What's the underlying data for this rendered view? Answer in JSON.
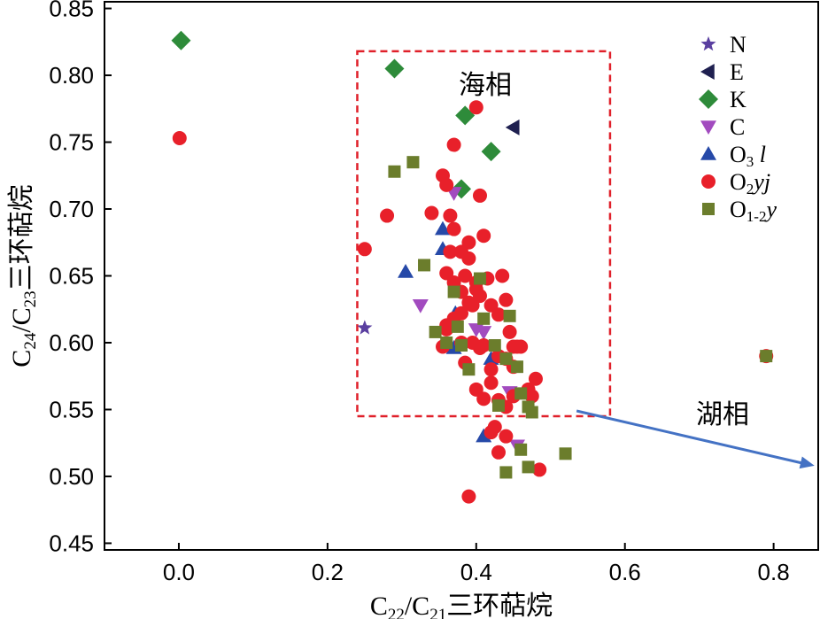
{
  "chart_data": {
    "type": "scatter",
    "xlim": [
      -0.1,
      0.86
    ],
    "ylim": [
      0.445,
      0.855
    ],
    "x_ticks": [
      "0.0",
      "0.2",
      "0.4",
      "0.6",
      "0.8"
    ],
    "y_ticks": [
      "0.45",
      "0.50",
      "0.55",
      "0.60",
      "0.65",
      "0.70",
      "0.75",
      "0.80",
      "0.85"
    ],
    "xlabel_parts": [
      "C",
      "22",
      "/C",
      "21",
      "三环萜烷"
    ],
    "ylabel_parts": [
      "C",
      "24",
      "/C",
      "23",
      "三环萜烷"
    ],
    "grid": false,
    "legend_position": "top-right",
    "series": [
      {
        "name_parts": [
          "N"
        ],
        "marker": "star",
        "color": "#5a3fa0",
        "x": [
          0.25
        ],
        "y": [
          0.611
        ]
      },
      {
        "name_parts": [
          "E"
        ],
        "marker": "triangle-left",
        "color": "#1f2050",
        "x": [
          0.45
        ],
        "y": [
          0.761
        ]
      },
      {
        "name_parts": [
          "K"
        ],
        "marker": "diamond",
        "color": "#2e8b3a",
        "x": [
          0.003,
          0.29,
          0.385,
          0.42,
          0.38
        ],
        "y": [
          0.826,
          0.805,
          0.77,
          0.743,
          0.715
        ]
      },
      {
        "name_parts": [
          "C"
        ],
        "marker": "triangle-down",
        "color": "#a24bbf",
        "x": [
          0.325,
          0.37,
          0.4,
          0.41,
          0.445,
          0.455
        ],
        "y": [
          0.628,
          0.712,
          0.61,
          0.608,
          0.563,
          0.523
        ]
      },
      {
        "name_parts": [
          "O",
          "3",
          " l"
        ],
        "marker": "triangle-up",
        "color": "#2649a8",
        "x": [
          0.305,
          0.355,
          0.355,
          0.372,
          0.37,
          0.42,
          0.41
        ],
        "y": [
          0.653,
          0.685,
          0.67,
          0.622,
          0.596,
          0.588,
          0.53
        ]
      },
      {
        "name_parts": [
          "O",
          "2",
          "yj"
        ],
        "marker": "circle",
        "color": "#e8202a",
        "x": [
          0.001,
          0.25,
          0.28,
          0.34,
          0.355,
          0.36,
          0.37,
          0.365,
          0.37,
          0.39,
          0.4,
          0.405,
          0.41,
          0.36,
          0.365,
          0.37,
          0.38,
          0.385,
          0.39,
          0.38,
          0.395,
          0.4,
          0.405,
          0.415,
          0.42,
          0.43,
          0.435,
          0.44,
          0.445,
          0.45,
          0.455,
          0.36,
          0.37,
          0.38,
          0.395,
          0.405,
          0.41,
          0.42,
          0.43,
          0.44,
          0.45,
          0.46,
          0.47,
          0.475,
          0.48,
          0.385,
          0.4,
          0.42,
          0.43,
          0.44,
          0.41,
          0.42,
          0.425,
          0.43,
          0.44,
          0.45,
          0.485,
          0.39,
          0.355,
          0.79,
          0.36,
          0.37,
          0.38,
          0.39,
          0.4
        ],
        "y": [
          0.753,
          0.67,
          0.695,
          0.697,
          0.725,
          0.718,
          0.748,
          0.695,
          0.685,
          0.675,
          0.776,
          0.71,
          0.68,
          0.652,
          0.668,
          0.645,
          0.668,
          0.65,
          0.663,
          0.638,
          0.628,
          0.645,
          0.635,
          0.648,
          0.628,
          0.621,
          0.65,
          0.632,
          0.608,
          0.597,
          0.597,
          0.613,
          0.618,
          0.6,
          0.6,
          0.596,
          0.598,
          0.58,
          0.59,
          0.588,
          0.582,
          0.597,
          0.565,
          0.56,
          0.573,
          0.585,
          0.565,
          0.57,
          0.557,
          0.552,
          0.558,
          0.533,
          0.537,
          0.518,
          0.53,
          0.56,
          0.505,
          0.485,
          0.597,
          0.59,
          0.61,
          0.615,
          0.622,
          0.63,
          0.64
        ]
      },
      {
        "name_parts": [
          "O",
          "1-2",
          "y"
        ],
        "marker": "square",
        "color": "#6b7d2c",
        "x": [
          0.29,
          0.315,
          0.33,
          0.345,
          0.36,
          0.37,
          0.375,
          0.38,
          0.39,
          0.405,
          0.41,
          0.425,
          0.43,
          0.44,
          0.445,
          0.455,
          0.46,
          0.47,
          0.475,
          0.52,
          0.44,
          0.47,
          0.46,
          0.79
        ],
        "y": [
          0.728,
          0.735,
          0.658,
          0.608,
          0.6,
          0.638,
          0.612,
          0.598,
          0.58,
          0.648,
          0.618,
          0.598,
          0.553,
          0.588,
          0.62,
          0.582,
          0.52,
          0.552,
          0.548,
          0.517,
          0.503,
          0.507,
          0.562,
          0.59
        ]
      }
    ],
    "annotations": [
      {
        "text": "海相",
        "kind": "dashed-box",
        "box_x": [
          0.24,
          0.58
        ],
        "box_y": [
          0.545,
          0.818
        ]
      },
      {
        "text": "湖相",
        "kind": "arrow",
        "from": [
          0.535,
          0.549
        ],
        "to": [
          0.855,
          0.508
        ]
      }
    ]
  }
}
